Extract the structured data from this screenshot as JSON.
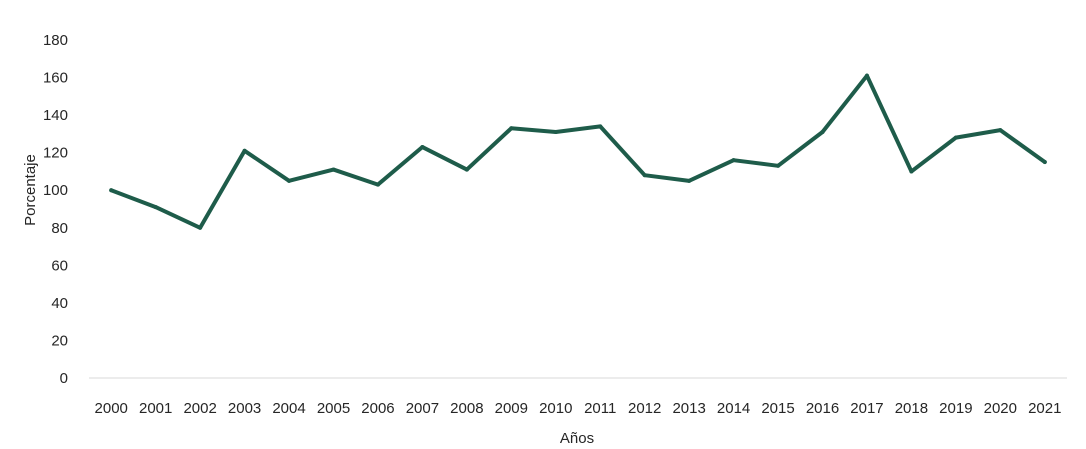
{
  "chart_data": {
    "type": "line",
    "title": "",
    "xlabel": "Años",
    "ylabel": "Porcentaje",
    "ylim": [
      0,
      180
    ],
    "y_ticks": [
      0,
      20,
      40,
      60,
      80,
      100,
      120,
      140,
      160,
      180
    ],
    "categories": [
      "2000",
      "2001",
      "2002",
      "2003",
      "2004",
      "2005",
      "2006",
      "2007",
      "2008",
      "2009",
      "2010",
      "2011",
      "2012",
      "2013",
      "2014",
      "2015",
      "2016",
      "2017",
      "2018",
      "2019",
      "2020",
      "2021"
    ],
    "series": [
      {
        "values": [
          100,
          91,
          80,
          121,
          105,
          111,
          103,
          123,
          111,
          133,
          131,
          134,
          108,
          105,
          116,
          113,
          131,
          161,
          110,
          128,
          132,
          115
        ],
        "color": "#1e5c4a"
      }
    ],
    "grid": false,
    "legend": "none",
    "axis_line_color": "#d9d9d9"
  }
}
